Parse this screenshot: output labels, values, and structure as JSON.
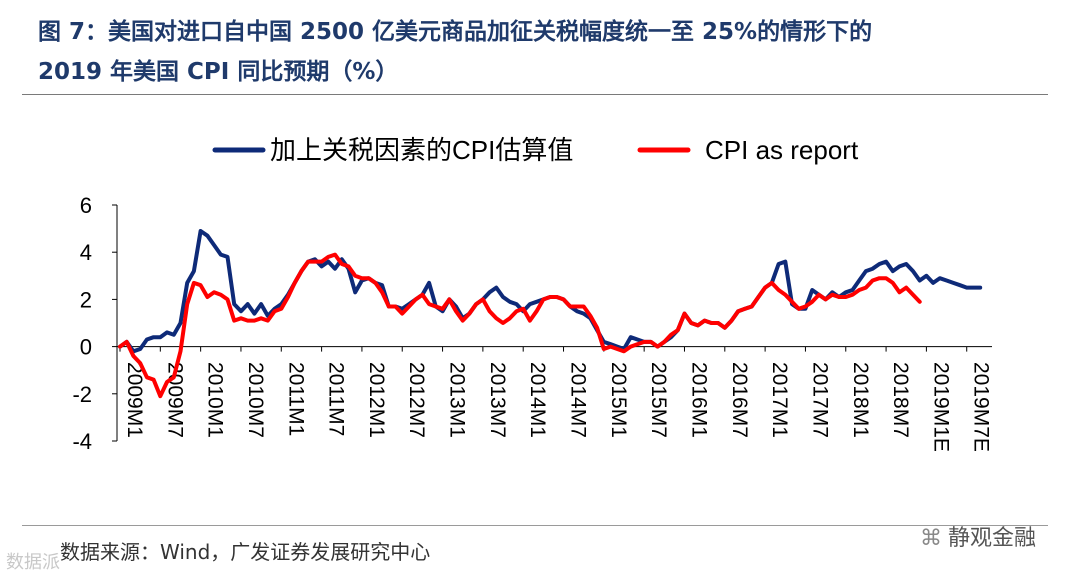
{
  "header": {
    "title_line1": "图 7：美国对进口自中国 2500 亿美元商品加征关税幅度统一至 25%的情形下的",
    "title_line2": "2019 年美国 CPI 同比预期（%）"
  },
  "footer": {
    "source": "数据来源：Wind，广发证券发展研究中心",
    "watermark": "静观金融",
    "watermark_left": "数据派"
  },
  "colors": {
    "series1": "#0e2a78",
    "series2": "#ff0000",
    "title": "#1f3a6b"
  },
  "chart_data": {
    "type": "line",
    "ylim": [
      -4,
      6
    ],
    "yticks": [
      -4,
      -2,
      0,
      2,
      4,
      6
    ],
    "x_tick_labels": [
      "2009M1",
      "2009M7",
      "2010M1",
      "2010M7",
      "2011M1",
      "2011M7",
      "2012M1",
      "2012M7",
      "2013M1",
      "2013M7",
      "2014M1",
      "2014M7",
      "2015M1",
      "2015M7",
      "2016M1",
      "2016M7",
      "2017M1",
      "2017M7",
      "2018M1",
      "2018M7",
      "2019M1E",
      "2019M7E"
    ],
    "legend_position": "top",
    "grid": false,
    "series": [
      {
        "name": "加上关税因素的CPI估算值",
        "color": "#0e2a78",
        "x": [
          "2009M1",
          "2009M2",
          "2009M3",
          "2009M4",
          "2009M5",
          "2009M6",
          "2009M7",
          "2009M8",
          "2009M9",
          "2009M10",
          "2009M11",
          "2009M12",
          "2010M1",
          "2010M2",
          "2010M3",
          "2010M4",
          "2010M5",
          "2010M6",
          "2010M7",
          "2010M8",
          "2010M9",
          "2010M10",
          "2010M11",
          "2010M12",
          "2011M1",
          "2011M2",
          "2011M3",
          "2011M4",
          "2011M5",
          "2011M6",
          "2011M7",
          "2011M8",
          "2011M9",
          "2011M10",
          "2011M11",
          "2011M12",
          "2012M1",
          "2012M2",
          "2012M3",
          "2012M4",
          "2012M5",
          "2012M6",
          "2012M7",
          "2012M8",
          "2012M9",
          "2012M10",
          "2012M11",
          "2012M12",
          "2013M1",
          "2013M2",
          "2013M3",
          "2013M4",
          "2013M5",
          "2013M6",
          "2013M7",
          "2013M8",
          "2013M9",
          "2013M10",
          "2013M11",
          "2013M12",
          "2014M1",
          "2014M2",
          "2014M3",
          "2014M4",
          "2014M5",
          "2014M6",
          "2014M7",
          "2014M8",
          "2014M9",
          "2014M10",
          "2014M11",
          "2014M12",
          "2015M1",
          "2015M2",
          "2015M3",
          "2015M4",
          "2015M5",
          "2015M6",
          "2015M7",
          "2015M8",
          "2015M9",
          "2015M10",
          "2015M11",
          "2015M12",
          "2016M1",
          "2016M2",
          "2016M3",
          "2016M4",
          "2016M5",
          "2016M6",
          "2016M7",
          "2016M8",
          "2016M9",
          "2016M10",
          "2016M11",
          "2016M12",
          "2017M1",
          "2017M2",
          "2017M3",
          "2017M4",
          "2017M5",
          "2017M6",
          "2017M7",
          "2017M8",
          "2017M9",
          "2017M10",
          "2017M11",
          "2017M12",
          "2018M1",
          "2018M2",
          "2018M3",
          "2018M4",
          "2018M5",
          "2018M6",
          "2018M7",
          "2018M8",
          "2018M9",
          "2018M10",
          "2018M11",
          "2018M12",
          "2019M1E",
          "2019M2E",
          "2019M3E",
          "2019M4E",
          "2019M5E",
          "2019M6E",
          "2019M7E",
          "2019M8E",
          "2019M9E"
        ],
        "values": [
          0.0,
          0.2,
          -0.2,
          -0.1,
          0.3,
          0.4,
          0.4,
          0.6,
          0.5,
          1.0,
          2.7,
          3.2,
          4.9,
          4.7,
          4.3,
          3.9,
          3.8,
          1.8,
          1.5,
          1.8,
          1.4,
          1.8,
          1.3,
          1.6,
          1.8,
          2.2,
          2.7,
          3.2,
          3.6,
          3.7,
          3.4,
          3.6,
          3.3,
          3.7,
          3.3,
          2.3,
          2.8,
          2.9,
          2.7,
          2.6,
          1.7,
          1.7,
          1.6,
          1.8,
          2.0,
          2.2,
          2.7,
          1.7,
          1.5,
          2.0,
          1.7,
          1.2,
          1.4,
          1.8,
          2.0,
          2.3,
          2.5,
          2.1,
          1.9,
          1.8,
          1.5,
          1.8,
          1.9,
          2.0,
          2.1,
          2.1,
          2.0,
          1.7,
          1.5,
          1.4,
          1.2,
          0.7,
          0.2,
          0.1,
          0.0,
          -0.1,
          0.4,
          0.3,
          0.2,
          0.2,
          0.0,
          0.2,
          0.4,
          0.7,
          1.4,
          1.0,
          0.9,
          1.1,
          1.0,
          1.0,
          0.8,
          1.1,
          1.5,
          1.6,
          1.7,
          2.1,
          2.5,
          2.7,
          3.5,
          3.6,
          1.8,
          1.6,
          1.6,
          2.4,
          2.2,
          2.0,
          2.3,
          2.1,
          2.3,
          2.4,
          2.8,
          3.2,
          3.3,
          3.5,
          3.6,
          3.2,
          3.4,
          3.5,
          3.2,
          2.8,
          3.0,
          2.7,
          2.9,
          2.8,
          2.7,
          2.6,
          2.5,
          2.5,
          2.5
        ]
      },
      {
        "name": "CPI as report",
        "color": "#ff0000",
        "x": [
          "2009M1",
          "2009M2",
          "2009M3",
          "2009M4",
          "2009M5",
          "2009M6",
          "2009M7",
          "2009M8",
          "2009M9",
          "2009M10",
          "2009M11",
          "2009M12",
          "2010M1",
          "2010M2",
          "2010M3",
          "2010M4",
          "2010M5",
          "2010M6",
          "2010M7",
          "2010M8",
          "2010M9",
          "2010M10",
          "2010M11",
          "2010M12",
          "2011M1",
          "2011M2",
          "2011M3",
          "2011M4",
          "2011M5",
          "2011M6",
          "2011M7",
          "2011M8",
          "2011M9",
          "2011M10",
          "2011M11",
          "2011M12",
          "2012M1",
          "2012M2",
          "2012M3",
          "2012M4",
          "2012M5",
          "2012M6",
          "2012M7",
          "2012M8",
          "2012M9",
          "2012M10",
          "2012M11",
          "2012M12",
          "2013M1",
          "2013M2",
          "2013M3",
          "2013M4",
          "2013M5",
          "2013M6",
          "2013M7",
          "2013M8",
          "2013M9",
          "2013M10",
          "2013M11",
          "2013M12",
          "2014M1",
          "2014M2",
          "2014M3",
          "2014M4",
          "2014M5",
          "2014M6",
          "2014M7",
          "2014M8",
          "2014M9",
          "2014M10",
          "2014M11",
          "2014M12",
          "2015M1",
          "2015M2",
          "2015M3",
          "2015M4",
          "2015M5",
          "2015M6",
          "2015M7",
          "2015M8",
          "2015M9",
          "2015M10",
          "2015M11",
          "2015M12",
          "2016M1",
          "2016M2",
          "2016M3",
          "2016M4",
          "2016M5",
          "2016M6",
          "2016M7",
          "2016M8",
          "2016M9",
          "2016M10",
          "2016M11",
          "2016M12",
          "2017M1",
          "2017M2",
          "2017M3",
          "2017M4",
          "2017M5",
          "2017M6",
          "2017M7",
          "2017M8",
          "2017M9",
          "2017M10",
          "2017M11",
          "2017M12",
          "2018M1",
          "2018M2",
          "2018M3",
          "2018M4",
          "2018M5",
          "2018M6",
          "2018M7",
          "2018M8",
          "2018M9",
          "2018M10",
          "2018M11",
          "2018M12"
        ],
        "values": [
          0.0,
          0.2,
          -0.4,
          -0.7,
          -1.3,
          -1.4,
          -2.1,
          -1.5,
          -1.3,
          -0.2,
          1.8,
          2.7,
          2.6,
          2.1,
          2.3,
          2.2,
          2.0,
          1.1,
          1.2,
          1.1,
          1.1,
          1.2,
          1.1,
          1.5,
          1.6,
          2.1,
          2.7,
          3.2,
          3.6,
          3.6,
          3.6,
          3.8,
          3.9,
          3.5,
          3.4,
          3.0,
          2.9,
          2.9,
          2.7,
          2.3,
          1.7,
          1.7,
          1.4,
          1.7,
          2.0,
          2.2,
          1.8,
          1.7,
          1.6,
          2.0,
          1.5,
          1.1,
          1.4,
          1.8,
          2.0,
          1.5,
          1.2,
          1.0,
          1.2,
          1.5,
          1.6,
          1.1,
          1.5,
          2.0,
          2.1,
          2.1,
          2.0,
          1.7,
          1.7,
          1.7,
          1.3,
          0.8,
          -0.1,
          0.0,
          -0.1,
          -0.2,
          0.0,
          0.1,
          0.2,
          0.2,
          0.0,
          0.2,
          0.5,
          0.7,
          1.4,
          1.0,
          0.9,
          1.1,
          1.0,
          1.0,
          0.8,
          1.1,
          1.5,
          1.6,
          1.7,
          2.1,
          2.5,
          2.7,
          2.4,
          2.2,
          1.9,
          1.6,
          1.7,
          1.9,
          2.2,
          2.0,
          2.2,
          2.1,
          2.1,
          2.2,
          2.4,
          2.5,
          2.8,
          2.9,
          2.9,
          2.7,
          2.3,
          2.5,
          2.2,
          1.9
        ]
      }
    ]
  }
}
